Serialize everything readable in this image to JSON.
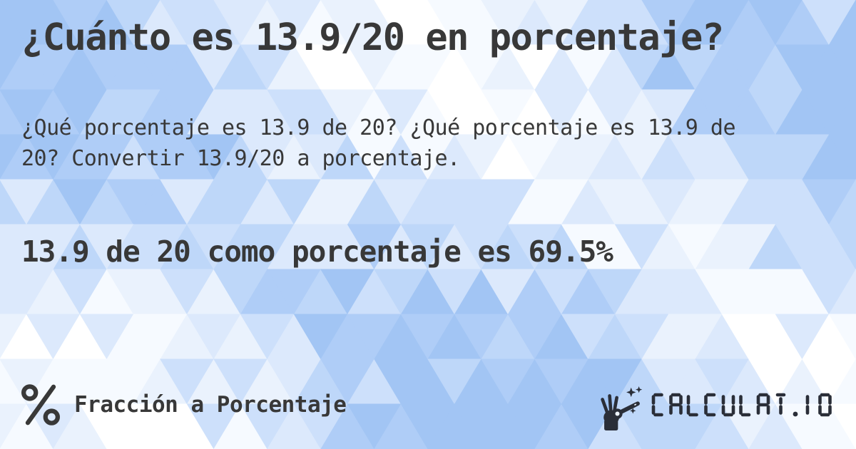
{
  "title": "¿Cuánto es 13.9/20 en porcentaje?",
  "description": "¿Qué porcentaje es 13.9 de 20? ¿Qué porcentaje es 13.9 de 20? Convertir 13.9/20 a porcentaje.",
  "answer": "13.9 de 20 como porcentaje es 69.5%",
  "footer": {
    "category_icon": "percent-icon",
    "category_label": "Fracción a Porcentaje",
    "brand_icon": "magic-wand-hand-icon",
    "brand_text": "CALCULAT.IO"
  },
  "colors": {
    "text_primary": "#383838",
    "brand_dark": "#2a2e38",
    "background_palette": [
      "#ffffff",
      "#f6faff",
      "#eaf2fd",
      "#dce9fc",
      "#cde0fb",
      "#bed7f9",
      "#afcdf7",
      "#a2c5f4"
    ]
  }
}
